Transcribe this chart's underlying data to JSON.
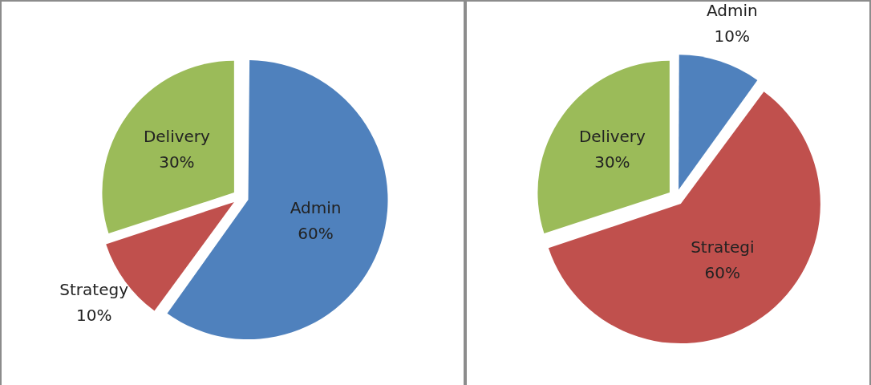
{
  "chart_data": [
    {
      "type": "pie",
      "categories": [
        "Admin",
        "Strategy",
        "Delivery"
      ],
      "values": [
        60,
        10,
        30
      ],
      "colors": [
        "#4f81bd",
        "#c0504d",
        "#9bbb59"
      ],
      "value_labels": [
        "60%",
        "10%",
        "30%"
      ]
    },
    {
      "type": "pie",
      "categories": [
        "Admin",
        "Strategi",
        "Delivery"
      ],
      "values": [
        10,
        60,
        30
      ],
      "colors": [
        "#4f81bd",
        "#c0504d",
        "#9bbb59"
      ],
      "value_labels": [
        "10%",
        "60%",
        "30%"
      ]
    }
  ]
}
